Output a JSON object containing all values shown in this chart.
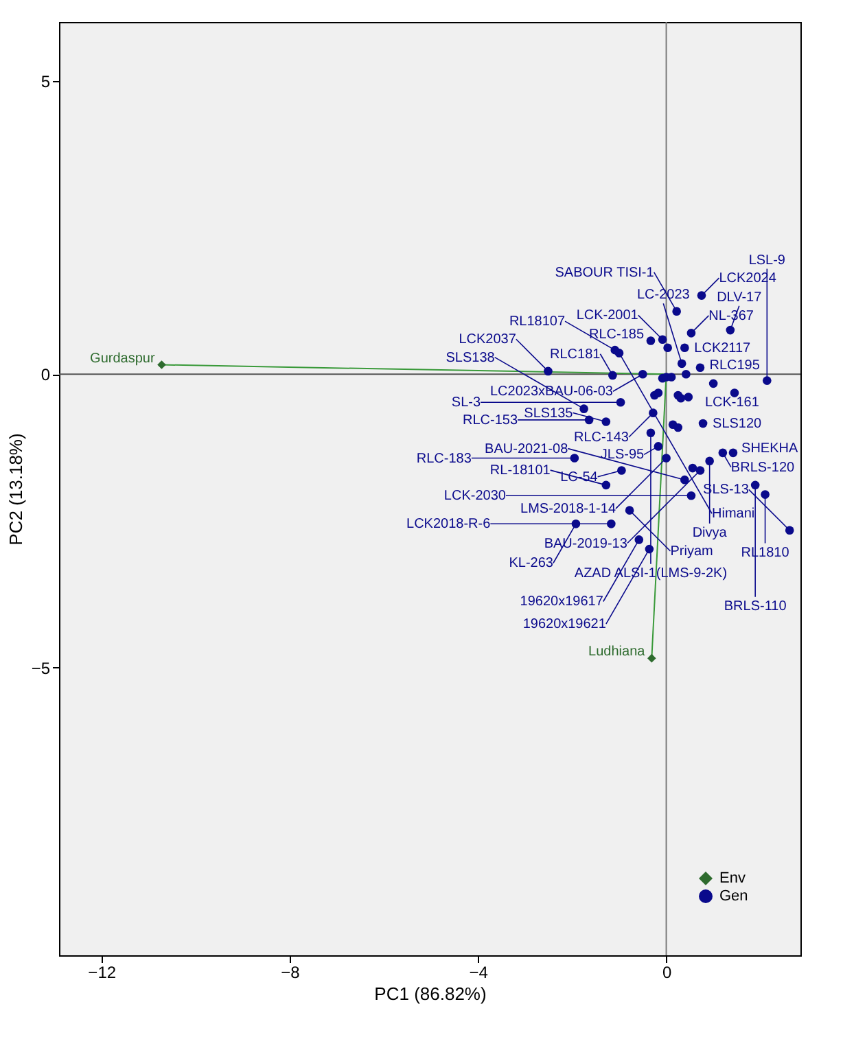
{
  "chart_data": {
    "type": "scatter",
    "xlabel": "PC1 (86.82%)",
    "ylabel": "PC2 (13.18%)",
    "xlim": [
      -12.9,
      2.85
    ],
    "xticks": [
      -12,
      -8,
      -4,
      0
    ],
    "ylim": [
      -9.9,
      6.0
    ],
    "yticks": [
      -5,
      0,
      5
    ],
    "grid": false,
    "legend": "bottom right",
    "ref_lines": [
      {
        "axis": "x",
        "value": 0,
        "color": "#7a7a7a"
      },
      {
        "axis": "y",
        "value": 0,
        "color": "#555555"
      }
    ],
    "series": [
      {
        "type": "line",
        "color": "#3a9a3a",
        "x": [
          0,
          -10.72
        ],
        "values": [
          0,
          0.16
        ],
        "marker": "none"
      },
      {
        "type": "line",
        "color": "#3a9a3a",
        "x": [
          0,
          -0.31
        ],
        "values": [
          0,
          -4.84
        ],
        "marker": "none"
      },
      {
        "name": "Env",
        "color": "#2e6b2e",
        "marker": "diamond",
        "x": [
          -10.72,
          -0.31
        ],
        "values": [
          0.16,
          -4.84
        ]
      },
      {
        "name": "Gen",
        "color": "#0a0a8c",
        "marker": "circle",
        "x": [
          0.22,
          0.75,
          -0.08,
          0.53,
          1.36,
          -1.0,
          -0.33,
          -1.09,
          0.39,
          2.14,
          -2.51,
          -1.14,
          0.33,
          0.72,
          -0.5,
          -1.64,
          -1.75,
          -0.97,
          1.45,
          -0.33,
          -1.28,
          -0.28,
          0.78,
          0.0,
          -0.17,
          1.2,
          1.42,
          0.92,
          0.72,
          0.39,
          1.89,
          2.1,
          2.62,
          -1.95,
          -0.95,
          -1.28,
          -0.78,
          -1.17,
          -1.92,
          0.53,
          -0.58,
          -0.36,
          0.03,
          0.42,
          -0.08,
          0.0,
          0.11,
          -0.25,
          -0.17,
          0.25,
          0.31,
          0.47,
          1.0,
          0.14,
          0.25,
          0.56
        ],
        "values": [
          1.07,
          1.34,
          0.59,
          0.7,
          0.75,
          0.36,
          0.57,
          0.41,
          0.45,
          -0.11,
          0.05,
          -0.02,
          0.18,
          0.11,
          0.0,
          -0.78,
          -0.59,
          -0.48,
          -0.32,
          -1.0,
          -0.81,
          -0.66,
          -0.84,
          -1.43,
          -1.23,
          -1.34,
          -1.34,
          -1.48,
          -1.64,
          -1.8,
          -1.89,
          -2.05,
          -2.66,
          -1.43,
          -1.64,
          -1.89,
          -2.32,
          -2.55,
          -2.55,
          -2.07,
          -2.82,
          -2.98,
          0.45,
          0.0,
          -0.07,
          -0.05,
          -0.05,
          -0.36,
          -0.32,
          -0.36,
          -0.41,
          -0.39,
          -0.16,
          -0.86,
          -0.91,
          -1.6
        ]
      }
    ],
    "annotations": [
      {
        "text": "Gurdaspur",
        "x": -10.72,
        "y": 0.16
      },
      {
        "text": "Ludhiana",
        "x": -0.31,
        "y": -4.84
      },
      {
        "text": "SABOUR TISI-1",
        "x": 0.22,
        "y": 1.07
      },
      {
        "text": "LCK2024",
        "x": 0.75,
        "y": 1.34
      },
      {
        "text": "LCK-2001",
        "x": -0.08,
        "y": 0.59
      },
      {
        "text": "NL-367",
        "x": 0.53,
        "y": 0.7
      },
      {
        "text": "DLV-17",
        "x": 1.36,
        "y": 0.75
      },
      {
        "text": "Himani",
        "x": -1.0,
        "y": 0.36
      },
      {
        "text": "RLC-185",
        "x": -0.33,
        "y": 0.57
      },
      {
        "text": "RL18107",
        "x": -1.09,
        "y": 0.41
      },
      {
        "text": "LCK2117",
        "x": 0.39,
        "y": 0.45
      },
      {
        "text": "LSL-9",
        "x": 2.14,
        "y": -0.11
      },
      {
        "text": "LCK2037",
        "x": -2.51,
        "y": 0.05
      },
      {
        "text": "RLC181",
        "x": -1.14,
        "y": -0.02
      },
      {
        "text": "LC-2023",
        "x": 0.33,
        "y": 0.18
      },
      {
        "text": "RLC195",
        "x": 0.72,
        "y": 0.11
      },
      {
        "text": "LC2023xBAU-06-03",
        "x": -0.5,
        "y": 0.0
      },
      {
        "text": "RLC-153",
        "x": -1.64,
        "y": -0.78
      },
      {
        "text": "SLS138",
        "x": -1.75,
        "y": -0.59
      },
      {
        "text": "SL-3",
        "x": -0.97,
        "y": -0.48
      },
      {
        "text": "LCK-161",
        "x": 1.45,
        "y": -0.32
      },
      {
        "text": "AZAD ALSI-1(LMS-9-2K)",
        "x": -0.33,
        "y": -1.0
      },
      {
        "text": "SLS135",
        "x": -1.28,
        "y": -0.81
      },
      {
        "text": "RLC-143",
        "x": -0.28,
        "y": -0.66
      },
      {
        "text": "SLS120",
        "x": 0.78,
        "y": -0.84
      },
      {
        "text": "LMS-2018-1-14",
        "x": 0.0,
        "y": -1.43
      },
      {
        "text": "JLS-95",
        "x": -0.17,
        "y": -1.23
      },
      {
        "text": "BRLS-120",
        "x": 1.2,
        "y": -1.34
      },
      {
        "text": "SHEKHA",
        "x": 1.42,
        "y": -1.34
      },
      {
        "text": "Divya",
        "x": 0.92,
        "y": -1.48
      },
      {
        "text": "BAU-2019-13",
        "x": 0.72,
        "y": -1.64
      },
      {
        "text": "BAU-2021-08",
        "x": 0.39,
        "y": -1.8
      },
      {
        "text": "BRLS-110",
        "x": 1.89,
        "y": -1.89
      },
      {
        "text": "RL1810",
        "x": 2.1,
        "y": -2.05
      },
      {
        "text": "SLS-13",
        "x": 2.62,
        "y": -2.66
      },
      {
        "text": "RLC-183",
        "x": -1.95,
        "y": -1.43
      },
      {
        "text": "LC-54",
        "x": -0.95,
        "y": -1.64
      },
      {
        "text": "RL-18101",
        "x": -1.28,
        "y": -1.89
      },
      {
        "text": "Priyam",
        "x": -0.78,
        "y": -2.32
      },
      {
        "text": "LCK2018-R-6",
        "x": -1.17,
        "y": -2.55
      },
      {
        "text": "KL-263",
        "x": -1.92,
        "y": -2.55
      },
      {
        "text": "LCK-2030",
        "x": 0.53,
        "y": -2.07
      },
      {
        "text": "19620x19617",
        "x": -0.58,
        "y": -2.82
      },
      {
        "text": "19620x19621",
        "x": -0.36,
        "y": -2.98
      }
    ]
  }
}
